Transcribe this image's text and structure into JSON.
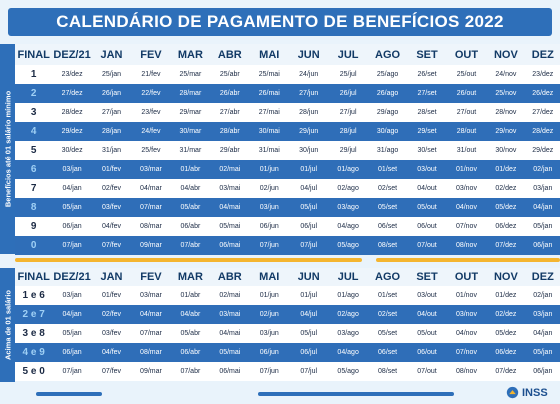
{
  "title": "CALENDÁRIO DE PAGAMENTO DE BENEFÍCIOS 2022",
  "headers": [
    "FINAL",
    "DEZ/21",
    "JAN",
    "FEV",
    "MAR",
    "ABR",
    "MAI",
    "JUN",
    "JUL",
    "AGO",
    "SET",
    "OUT",
    "NOV",
    "DEZ"
  ],
  "section1": {
    "label": "Benefícios até 01 salário mínimo",
    "rows": [
      [
        "1",
        "23/dez",
        "25/jan",
        "21/fev",
        "25/mar",
        "25/abr",
        "25/mai",
        "24/jun",
        "25/jul",
        "25/ago",
        "26/set",
        "25/out",
        "24/nov",
        "23/dez"
      ],
      [
        "2",
        "27/dez",
        "26/jan",
        "22/fev",
        "28/mar",
        "26/abr",
        "26/mai",
        "27/jun",
        "26/jul",
        "26/ago",
        "27/set",
        "26/out",
        "25/nov",
        "26/dez"
      ],
      [
        "3",
        "28/dez",
        "27/jan",
        "23/fev",
        "29/mar",
        "27/abr",
        "27/mai",
        "28/jun",
        "27/jul",
        "29/ago",
        "28/set",
        "27/out",
        "28/nov",
        "27/dez"
      ],
      [
        "4",
        "29/dez",
        "28/jan",
        "24/fev",
        "30/mar",
        "28/abr",
        "30/mai",
        "29/jun",
        "28/jul",
        "30/ago",
        "29/set",
        "28/out",
        "29/nov",
        "28/dez"
      ],
      [
        "5",
        "30/dez",
        "31/jan",
        "25/fev",
        "31/mar",
        "29/abr",
        "31/mai",
        "30/jun",
        "29/jul",
        "31/ago",
        "30/set",
        "31/out",
        "30/nov",
        "29/dez"
      ],
      [
        "6",
        "03/jan",
        "01/fev",
        "03/mar",
        "01/abr",
        "02/mai",
        "01/jun",
        "01/jul",
        "01/ago",
        "01/set",
        "03/out",
        "01/nov",
        "01/dez",
        "02/jan"
      ],
      [
        "7",
        "04/jan",
        "02/fev",
        "04/mar",
        "04/abr",
        "03/mai",
        "02/jun",
        "04/jul",
        "02/ago",
        "02/set",
        "04/out",
        "03/nov",
        "02/dez",
        "03/jan"
      ],
      [
        "8",
        "05/jan",
        "03/fev",
        "07/mar",
        "05/abr",
        "04/mai",
        "03/jun",
        "05/jul",
        "03/ago",
        "05/set",
        "05/out",
        "04/nov",
        "05/dez",
        "04/jan"
      ],
      [
        "9",
        "06/jan",
        "04/fev",
        "08/mar",
        "06/abr",
        "05/mai",
        "06/jun",
        "06/jul",
        "04/ago",
        "06/set",
        "06/out",
        "07/nov",
        "06/dez",
        "05/jan"
      ],
      [
        "0",
        "07/jan",
        "07/fev",
        "09/mar",
        "07/abr",
        "06/mai",
        "07/jun",
        "07/jul",
        "05/ago",
        "08/set",
        "07/out",
        "08/nov",
        "07/dez",
        "06/jan"
      ]
    ]
  },
  "section2": {
    "label": "Acima de 01 salário",
    "rows": [
      [
        "1 e 6",
        "03/jan",
        "01/fev",
        "03/mar",
        "01/abr",
        "02/mai",
        "01/jun",
        "01/jul",
        "01/ago",
        "01/set",
        "03/out",
        "01/nov",
        "01/dez",
        "02/jan"
      ],
      [
        "2 e 7",
        "04/jan",
        "02/fev",
        "04/mar",
        "04/abr",
        "03/mai",
        "02/jun",
        "04/jul",
        "02/ago",
        "02/set",
        "04/out",
        "03/nov",
        "02/dez",
        "03/jan"
      ],
      [
        "3 e 8",
        "05/jan",
        "03/fev",
        "07/mar",
        "05/abr",
        "04/mai",
        "03/jun",
        "05/jul",
        "03/ago",
        "05/set",
        "05/out",
        "04/nov",
        "05/dez",
        "04/jan"
      ],
      [
        "4 e 9",
        "06/jan",
        "04/fev",
        "08/mar",
        "06/abr",
        "05/mai",
        "06/jun",
        "06/jul",
        "04/ago",
        "06/set",
        "06/out",
        "07/nov",
        "06/dez",
        "05/jan"
      ],
      [
        "5 e 0",
        "07/jan",
        "07/fev",
        "09/mar",
        "07/abr",
        "06/mai",
        "07/jun",
        "07/jul",
        "05/ago",
        "08/set",
        "07/out",
        "08/nov",
        "07/dez",
        "06/jan"
      ]
    ]
  },
  "logo": {
    "text": "INSS",
    "icon": "inss-logo-icon"
  },
  "colors": {
    "primary": "#2e6fb9",
    "accent": "#f4b530",
    "light": "#ffffff"
  }
}
